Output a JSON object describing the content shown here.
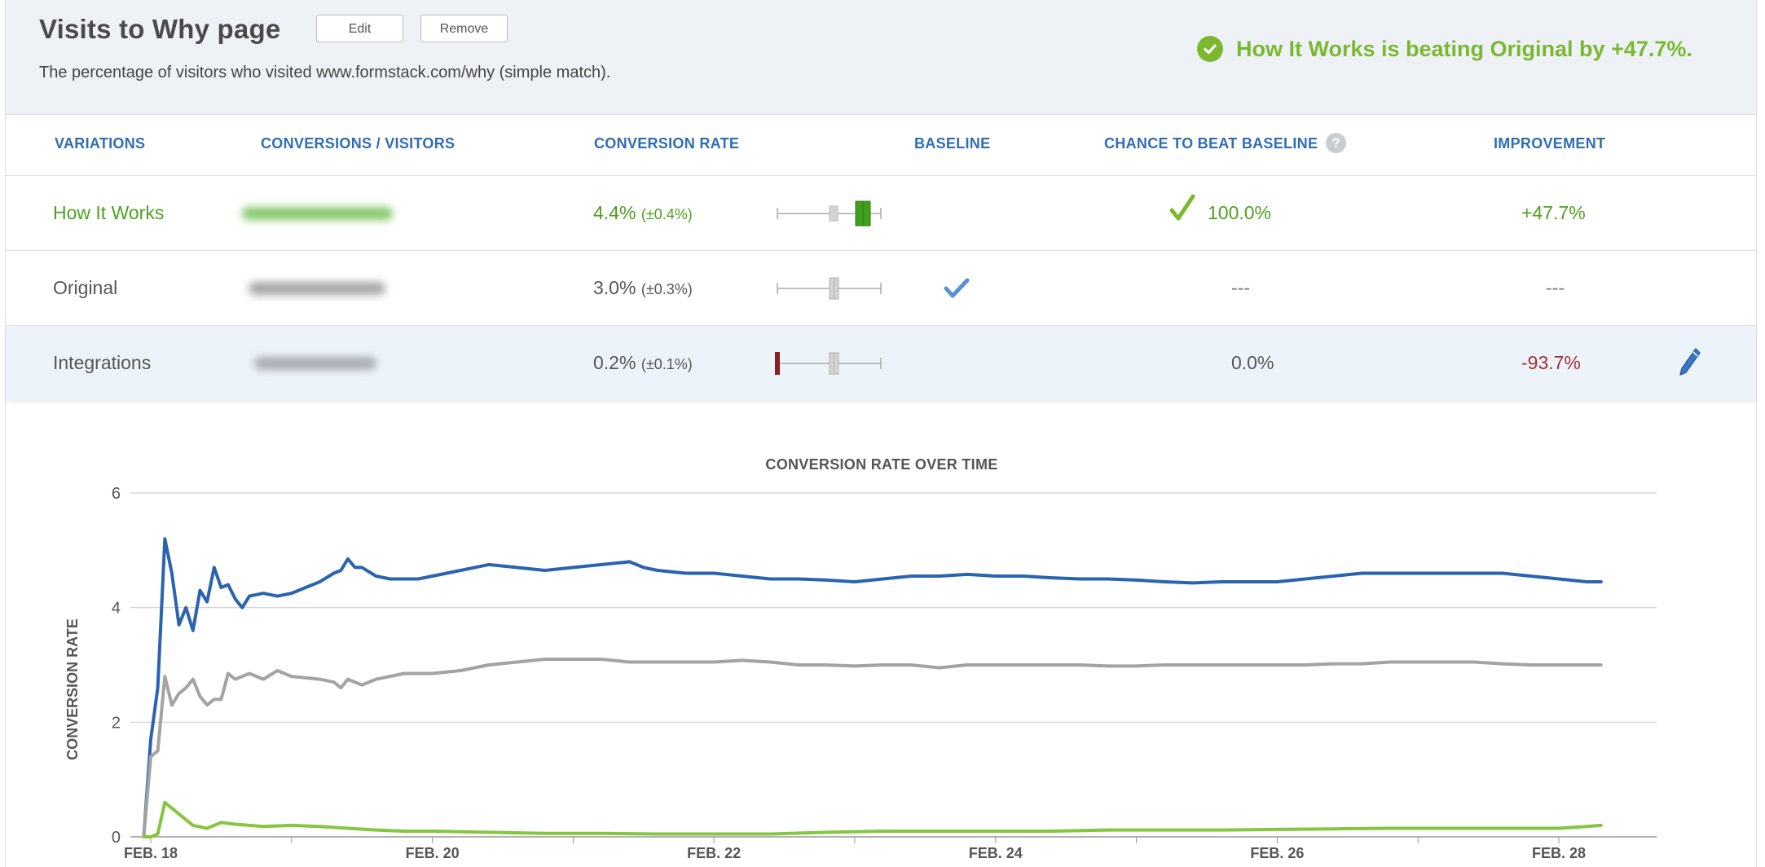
{
  "header": {
    "title": "Visits to Why page",
    "edit_label": "Edit",
    "remove_label": "Remove",
    "subtitle": "The percentage of visitors who visited www.formstack.com/why (simple match).",
    "winner_text": "How It Works is beating Original by +47.7%."
  },
  "table": {
    "columns": [
      "VARIATIONS",
      "CONVERSIONS / VISITORS",
      "CONVERSION RATE",
      "BASELINE",
      "CHANCE TO BEAT BASELINE",
      "IMPROVEMENT"
    ],
    "rows": [
      {
        "name": "How It Works",
        "rate": "4.4%",
        "margin": "(±0.4%)",
        "chance": "100.0%",
        "improvement": "+47.7%",
        "baseline": false
      },
      {
        "name": "Original",
        "rate": "3.0%",
        "margin": "(±0.3%)",
        "chance": "---",
        "improvement": "---",
        "baseline": true
      },
      {
        "name": "Integrations",
        "rate": "0.2%",
        "margin": "(±0.1%)",
        "chance": "0.0%",
        "improvement": "-93.7%",
        "baseline": false
      }
    ]
  },
  "colors": {
    "green": "#4ea01f",
    "blue": "#2f6db5",
    "red": "#a33030",
    "grey_line": "#a3a3a3",
    "blue_line": "#2a63b0",
    "green_line": "#86c540"
  },
  "chart_data": {
    "type": "line",
    "title": "CONVERSION RATE OVER TIME",
    "ylabel": "CONVERSION RATE",
    "xlabel": "",
    "ylim": [
      0,
      6
    ],
    "yticks": [
      0,
      2,
      4,
      6
    ],
    "xlim": [
      "2013-02-18",
      "2013-02-28"
    ],
    "xticks": [
      {
        "label": "FEB. 18",
        "x": 18
      },
      {
        "label": "FEB. 20",
        "x": 20
      },
      {
        "label": "FEB. 22",
        "x": 22
      },
      {
        "label": "FEB. 24",
        "x": 24
      },
      {
        "label": "FEB. 26",
        "x": 26
      },
      {
        "label": "FEB. 28",
        "x": 28
      }
    ],
    "grid": true,
    "series": [
      {
        "color": "#2a63b0",
        "points": [
          [
            17.95,
            0
          ],
          [
            18.0,
            1.7
          ],
          [
            18.05,
            2.6
          ],
          [
            18.1,
            5.2
          ],
          [
            18.15,
            4.6
          ],
          [
            18.2,
            3.7
          ],
          [
            18.25,
            4.0
          ],
          [
            18.3,
            3.6
          ],
          [
            18.35,
            4.3
          ],
          [
            18.4,
            4.1
          ],
          [
            18.45,
            4.7
          ],
          [
            18.5,
            4.35
          ],
          [
            18.55,
            4.4
          ],
          [
            18.6,
            4.15
          ],
          [
            18.65,
            4.0
          ],
          [
            18.7,
            4.2
          ],
          [
            18.8,
            4.25
          ],
          [
            18.9,
            4.2
          ],
          [
            19.0,
            4.25
          ],
          [
            19.1,
            4.35
          ],
          [
            19.2,
            4.45
          ],
          [
            19.3,
            4.6
          ],
          [
            19.35,
            4.65
          ],
          [
            19.4,
            4.85
          ],
          [
            19.45,
            4.7
          ],
          [
            19.5,
            4.7
          ],
          [
            19.6,
            4.55
          ],
          [
            19.7,
            4.5
          ],
          [
            19.8,
            4.5
          ],
          [
            19.9,
            4.5
          ],
          [
            20.0,
            4.55
          ],
          [
            20.2,
            4.65
          ],
          [
            20.4,
            4.75
          ],
          [
            20.6,
            4.7
          ],
          [
            20.8,
            4.65
          ],
          [
            21.0,
            4.7
          ],
          [
            21.2,
            4.75
          ],
          [
            21.4,
            4.8
          ],
          [
            21.5,
            4.7
          ],
          [
            21.6,
            4.65
          ],
          [
            21.8,
            4.6
          ],
          [
            22.0,
            4.6
          ],
          [
            22.2,
            4.55
          ],
          [
            22.4,
            4.5
          ],
          [
            22.6,
            4.5
          ],
          [
            22.8,
            4.48
          ],
          [
            23.0,
            4.45
          ],
          [
            23.2,
            4.5
          ],
          [
            23.4,
            4.55
          ],
          [
            23.6,
            4.55
          ],
          [
            23.8,
            4.58
          ],
          [
            24.0,
            4.55
          ],
          [
            24.2,
            4.55
          ],
          [
            24.4,
            4.52
          ],
          [
            24.6,
            4.5
          ],
          [
            24.8,
            4.5
          ],
          [
            25.0,
            4.48
          ],
          [
            25.2,
            4.45
          ],
          [
            25.4,
            4.43
          ],
          [
            25.6,
            4.45
          ],
          [
            25.8,
            4.45
          ],
          [
            26.0,
            4.45
          ],
          [
            26.2,
            4.5
          ],
          [
            26.4,
            4.55
          ],
          [
            26.6,
            4.6
          ],
          [
            26.8,
            4.6
          ],
          [
            27.0,
            4.6
          ],
          [
            27.2,
            4.6
          ],
          [
            27.4,
            4.6
          ],
          [
            27.6,
            4.6
          ],
          [
            27.8,
            4.55
          ],
          [
            28.0,
            4.5
          ],
          [
            28.2,
            4.45
          ],
          [
            28.3,
            4.45
          ]
        ]
      },
      {
        "color": "#a3a3a3",
        "points": [
          [
            17.95,
            0
          ],
          [
            18.0,
            1.4
          ],
          [
            18.05,
            1.5
          ],
          [
            18.1,
            2.8
          ],
          [
            18.15,
            2.3
          ],
          [
            18.2,
            2.5
          ],
          [
            18.25,
            2.6
          ],
          [
            18.3,
            2.75
          ],
          [
            18.35,
            2.45
          ],
          [
            18.4,
            2.3
          ],
          [
            18.45,
            2.4
          ],
          [
            18.5,
            2.4
          ],
          [
            18.55,
            2.85
          ],
          [
            18.6,
            2.75
          ],
          [
            18.7,
            2.85
          ],
          [
            18.8,
            2.75
          ],
          [
            18.9,
            2.9
          ],
          [
            19.0,
            2.8
          ],
          [
            19.2,
            2.75
          ],
          [
            19.3,
            2.7
          ],
          [
            19.35,
            2.6
          ],
          [
            19.4,
            2.75
          ],
          [
            19.5,
            2.65
          ],
          [
            19.6,
            2.75
          ],
          [
            19.8,
            2.85
          ],
          [
            20.0,
            2.85
          ],
          [
            20.2,
            2.9
          ],
          [
            20.4,
            3.0
          ],
          [
            20.6,
            3.05
          ],
          [
            20.8,
            3.1
          ],
          [
            21.0,
            3.1
          ],
          [
            21.2,
            3.1
          ],
          [
            21.4,
            3.05
          ],
          [
            21.6,
            3.05
          ],
          [
            21.8,
            3.05
          ],
          [
            22.0,
            3.05
          ],
          [
            22.2,
            3.08
          ],
          [
            22.4,
            3.05
          ],
          [
            22.6,
            3.0
          ],
          [
            22.8,
            3.0
          ],
          [
            23.0,
            2.98
          ],
          [
            23.2,
            3.0
          ],
          [
            23.4,
            3.0
          ],
          [
            23.6,
            2.95
          ],
          [
            23.8,
            3.0
          ],
          [
            24.0,
            3.0
          ],
          [
            24.2,
            3.0
          ],
          [
            24.4,
            3.0
          ],
          [
            24.6,
            3.0
          ],
          [
            24.8,
            2.98
          ],
          [
            25.0,
            2.98
          ],
          [
            25.2,
            3.0
          ],
          [
            25.4,
            3.0
          ],
          [
            25.6,
            3.0
          ],
          [
            25.8,
            3.0
          ],
          [
            26.0,
            3.0
          ],
          [
            26.2,
            3.0
          ],
          [
            26.4,
            3.02
          ],
          [
            26.6,
            3.02
          ],
          [
            26.8,
            3.05
          ],
          [
            27.0,
            3.05
          ],
          [
            27.2,
            3.05
          ],
          [
            27.4,
            3.05
          ],
          [
            27.6,
            3.02
          ],
          [
            27.8,
            3.0
          ],
          [
            28.0,
            3.0
          ],
          [
            28.2,
            3.0
          ],
          [
            28.3,
            3.0
          ]
        ]
      },
      {
        "color": "#86c540",
        "points": [
          [
            17.95,
            0
          ],
          [
            18.0,
            0
          ],
          [
            18.05,
            0.05
          ],
          [
            18.1,
            0.6
          ],
          [
            18.15,
            0.5
          ],
          [
            18.2,
            0.4
          ],
          [
            18.3,
            0.2
          ],
          [
            18.4,
            0.15
          ],
          [
            18.5,
            0.25
          ],
          [
            18.6,
            0.22
          ],
          [
            18.8,
            0.18
          ],
          [
            19.0,
            0.2
          ],
          [
            19.2,
            0.18
          ],
          [
            19.4,
            0.15
          ],
          [
            19.6,
            0.12
          ],
          [
            19.8,
            0.1
          ],
          [
            20.0,
            0.1
          ],
          [
            20.4,
            0.08
          ],
          [
            20.8,
            0.06
          ],
          [
            21.2,
            0.06
          ],
          [
            21.6,
            0.05
          ],
          [
            22.0,
            0.05
          ],
          [
            22.4,
            0.05
          ],
          [
            22.8,
            0.08
          ],
          [
            23.2,
            0.1
          ],
          [
            23.6,
            0.1
          ],
          [
            24.0,
            0.1
          ],
          [
            24.4,
            0.1
          ],
          [
            24.8,
            0.12
          ],
          [
            25.2,
            0.12
          ],
          [
            25.6,
            0.12
          ],
          [
            26.0,
            0.13
          ],
          [
            26.4,
            0.14
          ],
          [
            26.8,
            0.15
          ],
          [
            27.2,
            0.15
          ],
          [
            27.6,
            0.15
          ],
          [
            28.0,
            0.15
          ],
          [
            28.2,
            0.18
          ],
          [
            28.3,
            0.2
          ]
        ]
      }
    ]
  }
}
